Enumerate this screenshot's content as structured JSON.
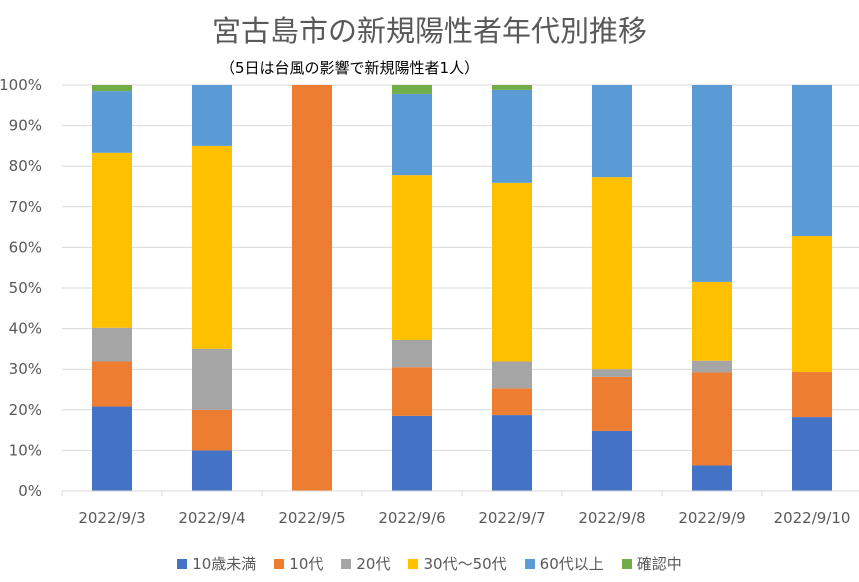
{
  "chart_data": {
    "type": "bar",
    "stacked": "percent",
    "title": "宮古島市の新規陽性者年代別推移",
    "subtitle": "（5日は台風の影響で新規陽性者1人）",
    "xlabel": "",
    "ylabel": "",
    "ylim": [
      0,
      100
    ],
    "yticks": [
      "0%",
      "10%",
      "20%",
      "30%",
      "40%",
      "50%",
      "60%",
      "70%",
      "80%",
      "90%",
      "100%"
    ],
    "grid": true,
    "legend_position": "bottom",
    "categories": [
      "2022/9/3",
      "2022/9/4",
      "2022/9/5",
      "2022/9/6",
      "2022/9/7",
      "2022/9/8",
      "2022/9/9",
      "2022/9/10"
    ],
    "series": [
      {
        "name": "10歳未満",
        "color": "#4472C4",
        "values": [
          20.8,
          10,
          0,
          18.5,
          18.7,
          14.8,
          6.3,
          18.2
        ]
      },
      {
        "name": "10代",
        "color": "#ED7D31",
        "values": [
          11.1,
          10,
          100,
          12.0,
          6.6,
          13.3,
          22.9,
          11.1
        ]
      },
      {
        "name": "20代",
        "color": "#A5A5A5",
        "values": [
          8.3,
          15,
          0,
          6.7,
          6.6,
          1.9,
          2.9,
          0
        ]
      },
      {
        "name": "30代～50代",
        "color": "#FFC000",
        "values": [
          43.1,
          50,
          0,
          40.6,
          44.0,
          47.3,
          19.4,
          33.5
        ]
      },
      {
        "name": "60代以上",
        "color": "#5B9BD5",
        "values": [
          15.2,
          15,
          0,
          20.0,
          22.9,
          22.7,
          48.5,
          37.2
        ]
      },
      {
        "name": "確認中",
        "color": "#70AD47",
        "values": [
          1.5,
          0,
          0,
          2.2,
          1.2,
          0,
          0,
          0
        ]
      }
    ]
  }
}
